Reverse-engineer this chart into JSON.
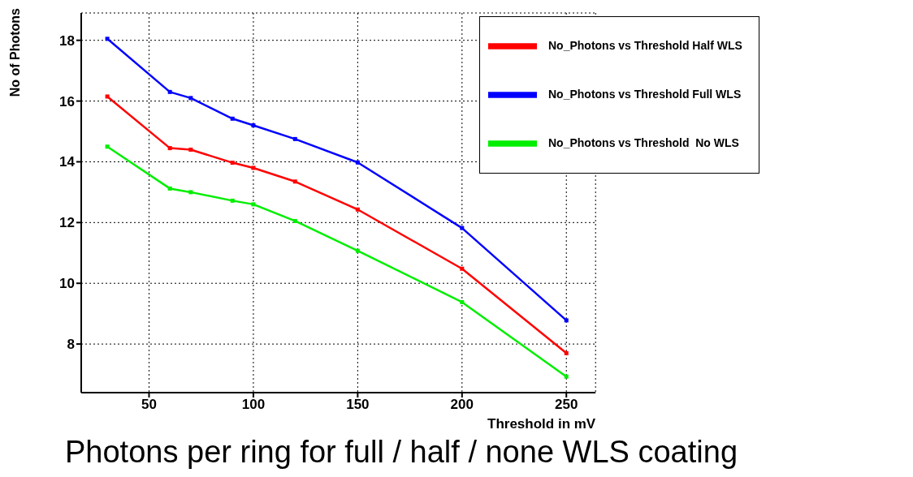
{
  "chart_data": {
    "type": "line",
    "xlabel": "Threshold in mV",
    "ylabel": "No of Photons",
    "annotations": [
      "Photons per ring for full / half / none WLS coating"
    ],
    "x": [
      30,
      60,
      70,
      90,
      100,
      120,
      150,
      200,
      250
    ],
    "series": [
      {
        "name": "No_Photons vs Threshold Half WLS",
        "color": "#ff0000",
        "values": [
          16.15,
          14.45,
          14.4,
          13.97,
          13.8,
          13.35,
          12.43,
          10.48,
          7.7
        ]
      },
      {
        "name": "No_Photons vs Threshold Full WLS",
        "color": "#0000ff",
        "values": [
          18.05,
          16.3,
          16.1,
          15.42,
          15.2,
          14.75,
          13.98,
          11.82,
          8.78
        ]
      },
      {
        "name": "No_Photons vs Threshold  No WLS",
        "color": "#00ee00",
        "values": [
          14.5,
          13.12,
          13.0,
          12.72,
          12.6,
          12.05,
          11.07,
          9.38,
          6.93
        ]
      }
    ],
    "xlim": [
      17.5,
      264
    ],
    "xticks": [
      50,
      100,
      150,
      200,
      250
    ],
    "ylim": [
      6.4,
      18.9
    ],
    "yticks": [
      8,
      10,
      12,
      14,
      16,
      18
    ],
    "grid": true,
    "legend": "top right",
    "marker": "square",
    "line_style": "solid"
  }
}
